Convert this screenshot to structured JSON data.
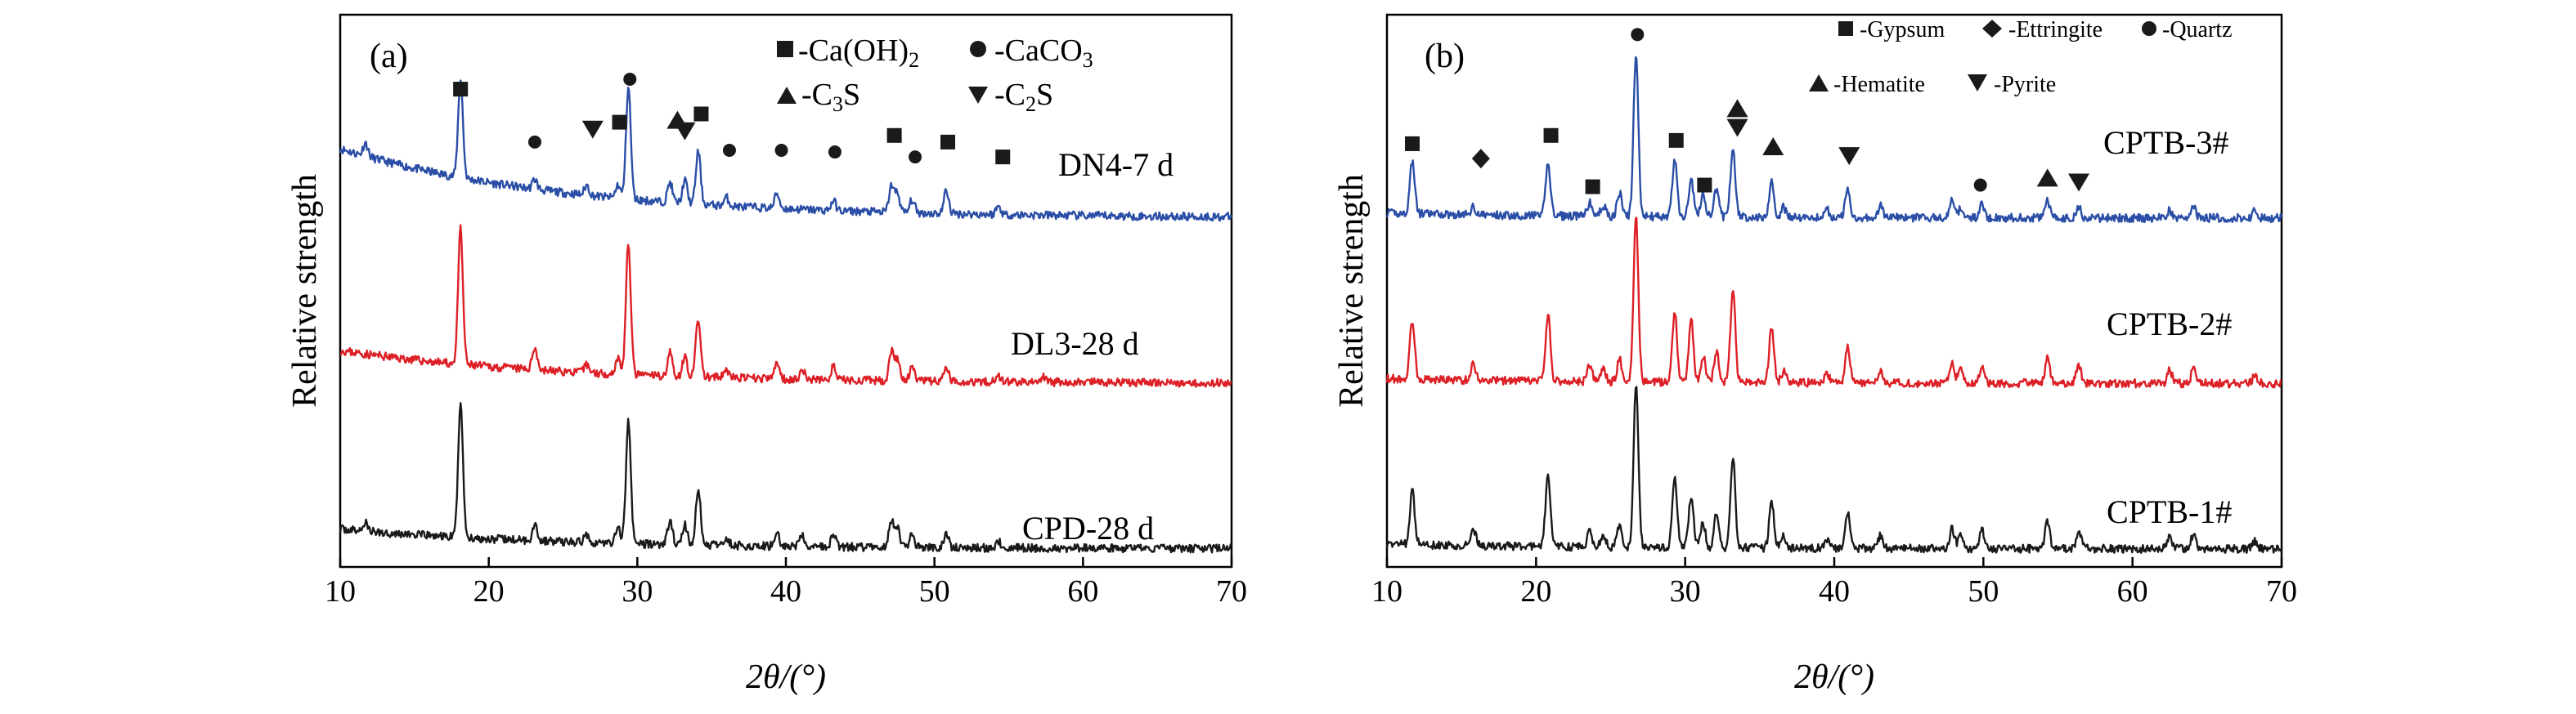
{
  "figure": [
    {
      "panel_label": "(a)",
      "xlabel": "2θ/(°)",
      "ylabel": "Relative strength",
      "xlim": [
        10,
        70
      ],
      "xticks": [
        "10",
        "20",
        "30",
        "40",
        "50",
        "60",
        "70"
      ],
      "legend": [
        {
          "symbol": "square",
          "text": "-Ca(OH)",
          "sub": "2",
          "rest": ""
        },
        {
          "symbol": "circle",
          "text": "-CaCO",
          "sub": "3",
          "rest": ""
        },
        {
          "symbol": "triangle-up",
          "text": "-C",
          "sub": "3",
          "rest": "S"
        },
        {
          "symbol": "triangle-down",
          "text": "-C",
          "sub": "2",
          "rest": "S"
        }
      ],
      "curves": [
        {
          "name": "DN4-7 d",
          "color": "#2a4ea6"
        },
        {
          "name": "DL3-28 d",
          "color": "#dd1f26"
        },
        {
          "name": "CPD-28 d",
          "color": "#1a1a1a"
        }
      ]
    },
    {
      "panel_label": "(b)",
      "xlabel": "2θ/(°)",
      "ylabel": "Relative strength",
      "xlim": [
        10,
        70
      ],
      "xticks": [
        "10",
        "20",
        "30",
        "40",
        "50",
        "60",
        "70"
      ],
      "legend": [
        {
          "symbol": "square",
          "text": "-Gypsum"
        },
        {
          "symbol": "diamond",
          "text": "-Ettringite"
        },
        {
          "symbol": "circle",
          "text": "-Quartz"
        },
        {
          "symbol": "triangle-up",
          "text": "-Hematite"
        },
        {
          "symbol": "triangle-down",
          "text": "-Pyrite"
        }
      ],
      "curves": [
        {
          "name": "CPTB-3#",
          "color": "#2a4ea6"
        },
        {
          "name": "CPTB-2#",
          "color": "#dd1f26"
        },
        {
          "name": "CPTB-1#",
          "color": "#1a1a1a"
        }
      ]
    }
  ],
  "chart_data": [
    {
      "type": "line",
      "xlabel": "2θ/(°)",
      "ylabel": "Relative strength",
      "xlim": [
        10,
        70
      ],
      "grid": false,
      "legend_placement": "top-right",
      "series": [
        {
          "name": "DN4-7 d",
          "color": "#2a4ea6",
          "offset": 2.0,
          "baseline_start": 0.42,
          "baseline_end": 0.02,
          "peaks": [
            [
              11.7,
              0.08
            ],
            [
              18.1,
              0.6
            ],
            [
              23.1,
              0.06
            ],
            [
              26.6,
              0.06
            ],
            [
              28.7,
              0.08
            ],
            [
              29.4,
              0.68
            ],
            [
              32.2,
              0.12
            ],
            [
              33.2,
              0.14
            ],
            [
              34.1,
              0.32
            ],
            [
              36.0,
              0.05
            ],
            [
              39.4,
              0.09
            ],
            [
              43.2,
              0.06
            ],
            [
              47.1,
              0.16
            ],
            [
              47.5,
              0.12
            ],
            [
              48.5,
              0.08
            ],
            [
              50.8,
              0.14
            ],
            [
              54.3,
              0.05
            ]
          ]
        },
        {
          "name": "DL3-28 d",
          "color": "#dd1f26",
          "offset": 1.0,
          "baseline_start": 0.2,
          "baseline_end": 0.02,
          "peaks": [
            [
              18.1,
              0.82
            ],
            [
              23.1,
              0.14
            ],
            [
              26.6,
              0.05
            ],
            [
              28.7,
              0.1
            ],
            [
              29.4,
              0.8
            ],
            [
              32.2,
              0.14
            ],
            [
              33.2,
              0.12
            ],
            [
              34.1,
              0.35
            ],
            [
              36.0,
              0.05
            ],
            [
              39.4,
              0.1
            ],
            [
              41.1,
              0.06
            ],
            [
              43.2,
              0.08
            ],
            [
              47.1,
              0.18
            ],
            [
              47.5,
              0.13
            ],
            [
              48.5,
              0.08
            ],
            [
              50.8,
              0.08
            ],
            [
              54.3,
              0.04
            ],
            [
              57.4,
              0.03
            ]
          ]
        },
        {
          "name": "CPD-28 d",
          "color": "#1a1a1a",
          "offset": 0.0,
          "baseline_start": 0.12,
          "baseline_end": 0.02,
          "peaks": [
            [
              11.7,
              0.05
            ],
            [
              18.1,
              0.82
            ],
            [
              23.1,
              0.1
            ],
            [
              26.6,
              0.05
            ],
            [
              28.7,
              0.1
            ],
            [
              29.4,
              0.75
            ],
            [
              32.2,
              0.14
            ],
            [
              33.2,
              0.12
            ],
            [
              34.1,
              0.34
            ],
            [
              36.0,
              0.05
            ],
            [
              39.4,
              0.08
            ],
            [
              41.1,
              0.06
            ],
            [
              43.2,
              0.07
            ],
            [
              47.1,
              0.16
            ],
            [
              47.5,
              0.12
            ],
            [
              48.5,
              0.08
            ],
            [
              50.8,
              0.08
            ],
            [
              54.3,
              0.04
            ]
          ]
        }
      ]
    },
    {
      "type": "line",
      "xlabel": "2θ/(°)",
      "ylabel": "Relative strength",
      "xlim": [
        10,
        70
      ],
      "grid": false,
      "legend_placement": "top",
      "series": [
        {
          "name": "CPTB-3#",
          "color": "#2a4ea6",
          "offset": 2.0,
          "baseline_start": 0.03,
          "baseline_end": 0.02,
          "peaks": [
            [
              11.7,
              0.32
            ],
            [
              15.8,
              0.05
            ],
            [
              20.8,
              0.32
            ],
            [
              23.6,
              0.08
            ],
            [
              24.5,
              0.07
            ],
            [
              25.6,
              0.14
            ],
            [
              26.7,
              0.98
            ],
            [
              29.3,
              0.34
            ],
            [
              30.4,
              0.23
            ],
            [
              31.2,
              0.14
            ],
            [
              32.1,
              0.17
            ],
            [
              33.2,
              0.42
            ],
            [
              35.8,
              0.21
            ],
            [
              36.6,
              0.06
            ],
            [
              39.5,
              0.05
            ],
            [
              40.9,
              0.17
            ],
            [
              43.1,
              0.07
            ],
            [
              47.9,
              0.1
            ],
            [
              48.5,
              0.06
            ],
            [
              49.9,
              0.08
            ],
            [
              54.3,
              0.1
            ],
            [
              56.4,
              0.06
            ],
            [
              62.5,
              0.05
            ],
            [
              64.1,
              0.06
            ],
            [
              68.2,
              0.04
            ]
          ]
        },
        {
          "name": "CPTB-2#",
          "color": "#dd1f26",
          "offset": 1.0,
          "baseline_start": 0.03,
          "baseline_end": 0.02,
          "peaks": [
            [
              11.7,
              0.36
            ],
            [
              15.8,
              0.1
            ],
            [
              20.8,
              0.4
            ],
            [
              23.6,
              0.1
            ],
            [
              24.5,
              0.08
            ],
            [
              25.6,
              0.14
            ],
            [
              26.7,
              1.0
            ],
            [
              29.3,
              0.43
            ],
            [
              30.4,
              0.38
            ],
            [
              31.2,
              0.16
            ],
            [
              32.1,
              0.19
            ],
            [
              33.2,
              0.57
            ],
            [
              35.8,
              0.34
            ],
            [
              36.6,
              0.07
            ],
            [
              39.5,
              0.06
            ],
            [
              40.9,
              0.21
            ],
            [
              43.1,
              0.08
            ],
            [
              47.9,
              0.12
            ],
            [
              48.5,
              0.08
            ],
            [
              49.9,
              0.11
            ],
            [
              54.3,
              0.15
            ],
            [
              56.4,
              0.11
            ],
            [
              62.5,
              0.08
            ],
            [
              64.1,
              0.09
            ],
            [
              68.2,
              0.05
            ]
          ]
        },
        {
          "name": "CPTB-1#",
          "color": "#1a1a1a",
          "offset": 0.0,
          "baseline_start": 0.03,
          "baseline_end": 0.02,
          "peaks": [
            [
              11.7,
              0.32
            ],
            [
              15.8,
              0.1
            ],
            [
              20.8,
              0.44
            ],
            [
              23.6,
              0.1
            ],
            [
              24.5,
              0.08
            ],
            [
              25.6,
              0.14
            ],
            [
              26.7,
              0.98
            ],
            [
              29.3,
              0.43
            ],
            [
              30.4,
              0.32
            ],
            [
              31.2,
              0.15
            ],
            [
              32.1,
              0.2
            ],
            [
              33.2,
              0.55
            ],
            [
              35.8,
              0.28
            ],
            [
              36.6,
              0.07
            ],
            [
              39.5,
              0.06
            ],
            [
              40.9,
              0.22
            ],
            [
              43.1,
              0.08
            ],
            [
              47.9,
              0.12
            ],
            [
              48.5,
              0.08
            ],
            [
              49.9,
              0.11
            ],
            [
              54.3,
              0.17
            ],
            [
              56.4,
              0.1
            ],
            [
              62.5,
              0.08
            ],
            [
              64.1,
              0.09
            ],
            [
              68.2,
              0.05
            ]
          ]
        }
      ]
    }
  ],
  "markers": [
    [
      {
        "shape": "square",
        "x": 18.1,
        "y": 2.8
      },
      {
        "shape": "circle",
        "x": 29.5,
        "y": 2.86
      },
      {
        "shape": "circle",
        "x": 23.1,
        "y": 2.48
      },
      {
        "shape": "triangle-down",
        "x": 27.0,
        "y": 2.56
      },
      {
        "shape": "square",
        "x": 28.8,
        "y": 2.6
      },
      {
        "shape": "triangle-up",
        "x": 32.7,
        "y": 2.61
      },
      {
        "shape": "triangle-down",
        "x": 33.2,
        "y": 2.55
      },
      {
        "shape": "square",
        "x": 34.3,
        "y": 2.65
      },
      {
        "shape": "circle",
        "x": 36.2,
        "y": 2.43
      },
      {
        "shape": "circle",
        "x": 39.7,
        "y": 2.43
      },
      {
        "shape": "circle",
        "x": 43.3,
        "y": 2.42
      },
      {
        "shape": "square",
        "x": 47.3,
        "y": 2.52
      },
      {
        "shape": "circle",
        "x": 48.7,
        "y": 2.39
      },
      {
        "shape": "square",
        "x": 50.9,
        "y": 2.48
      },
      {
        "shape": "square",
        "x": 54.6,
        "y": 2.39
      }
    ],
    [
      {
        "shape": "square",
        "x": 11.7,
        "y": 2.47
      },
      {
        "shape": "diamond",
        "x": 16.3,
        "y": 2.38
      },
      {
        "shape": "square",
        "x": 21.0,
        "y": 2.52
      },
      {
        "shape": "circle",
        "x": 26.8,
        "y": 3.13
      },
      {
        "shape": "square",
        "x": 23.8,
        "y": 2.21
      },
      {
        "shape": "square",
        "x": 29.4,
        "y": 2.49
      },
      {
        "shape": "square",
        "x": 31.3,
        "y": 2.22
      },
      {
        "shape": "triangle-up",
        "x": 33.5,
        "y": 2.68
      },
      {
        "shape": "triangle-down",
        "x": 33.5,
        "y": 2.57
      },
      {
        "shape": "triangle-up",
        "x": 35.9,
        "y": 2.45
      },
      {
        "shape": "triangle-down",
        "x": 41.0,
        "y": 2.4
      },
      {
        "shape": "circle",
        "x": 49.8,
        "y": 2.22
      },
      {
        "shape": "triangle-up",
        "x": 54.3,
        "y": 2.26
      },
      {
        "shape": "triangle-down",
        "x": 56.4,
        "y": 2.24
      }
    ]
  ]
}
